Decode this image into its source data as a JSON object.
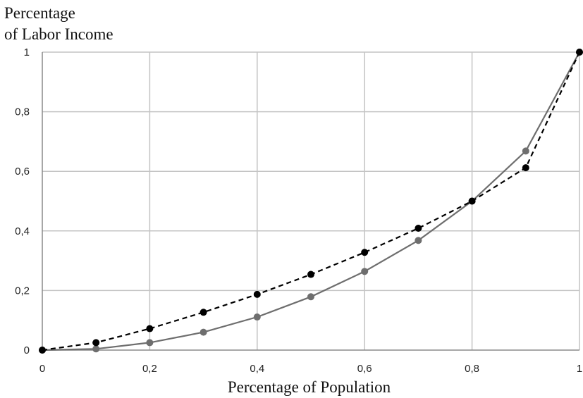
{
  "chart_data": {
    "type": "line",
    "xlabel": "Percentage of Population",
    "ylabel_lines": [
      "Percentage",
      "of Labor Income"
    ],
    "xlim": [
      0,
      1
    ],
    "ylim": [
      0,
      1
    ],
    "x_ticks": [
      "0",
      "0,2",
      "0,4",
      "0,6",
      "0,8",
      "1"
    ],
    "y_ticks": [
      "0",
      "0,2",
      "0,4",
      "0,6",
      "0,8",
      "1"
    ],
    "grid": true,
    "legend": "none",
    "series": [
      {
        "style": "dashed",
        "color": "#000000",
        "x": [
          0,
          0.1,
          0.2,
          0.3,
          0.4,
          0.5,
          0.6,
          0.7,
          0.8,
          0.9,
          1
        ],
        "y": [
          0,
          0.025,
          0.072,
          0.127,
          0.187,
          0.254,
          0.328,
          0.409,
          0.5,
          0.612,
          1
        ]
      },
      {
        "style": "solid",
        "color": "#6e6e6e",
        "x": [
          0,
          0.1,
          0.2,
          0.3,
          0.4,
          0.5,
          0.6,
          0.7,
          0.8,
          0.9,
          1
        ],
        "y": [
          0,
          0.004,
          0.025,
          0.06,
          0.111,
          0.179,
          0.264,
          0.368,
          0.5,
          0.668,
          1
        ]
      }
    ]
  }
}
